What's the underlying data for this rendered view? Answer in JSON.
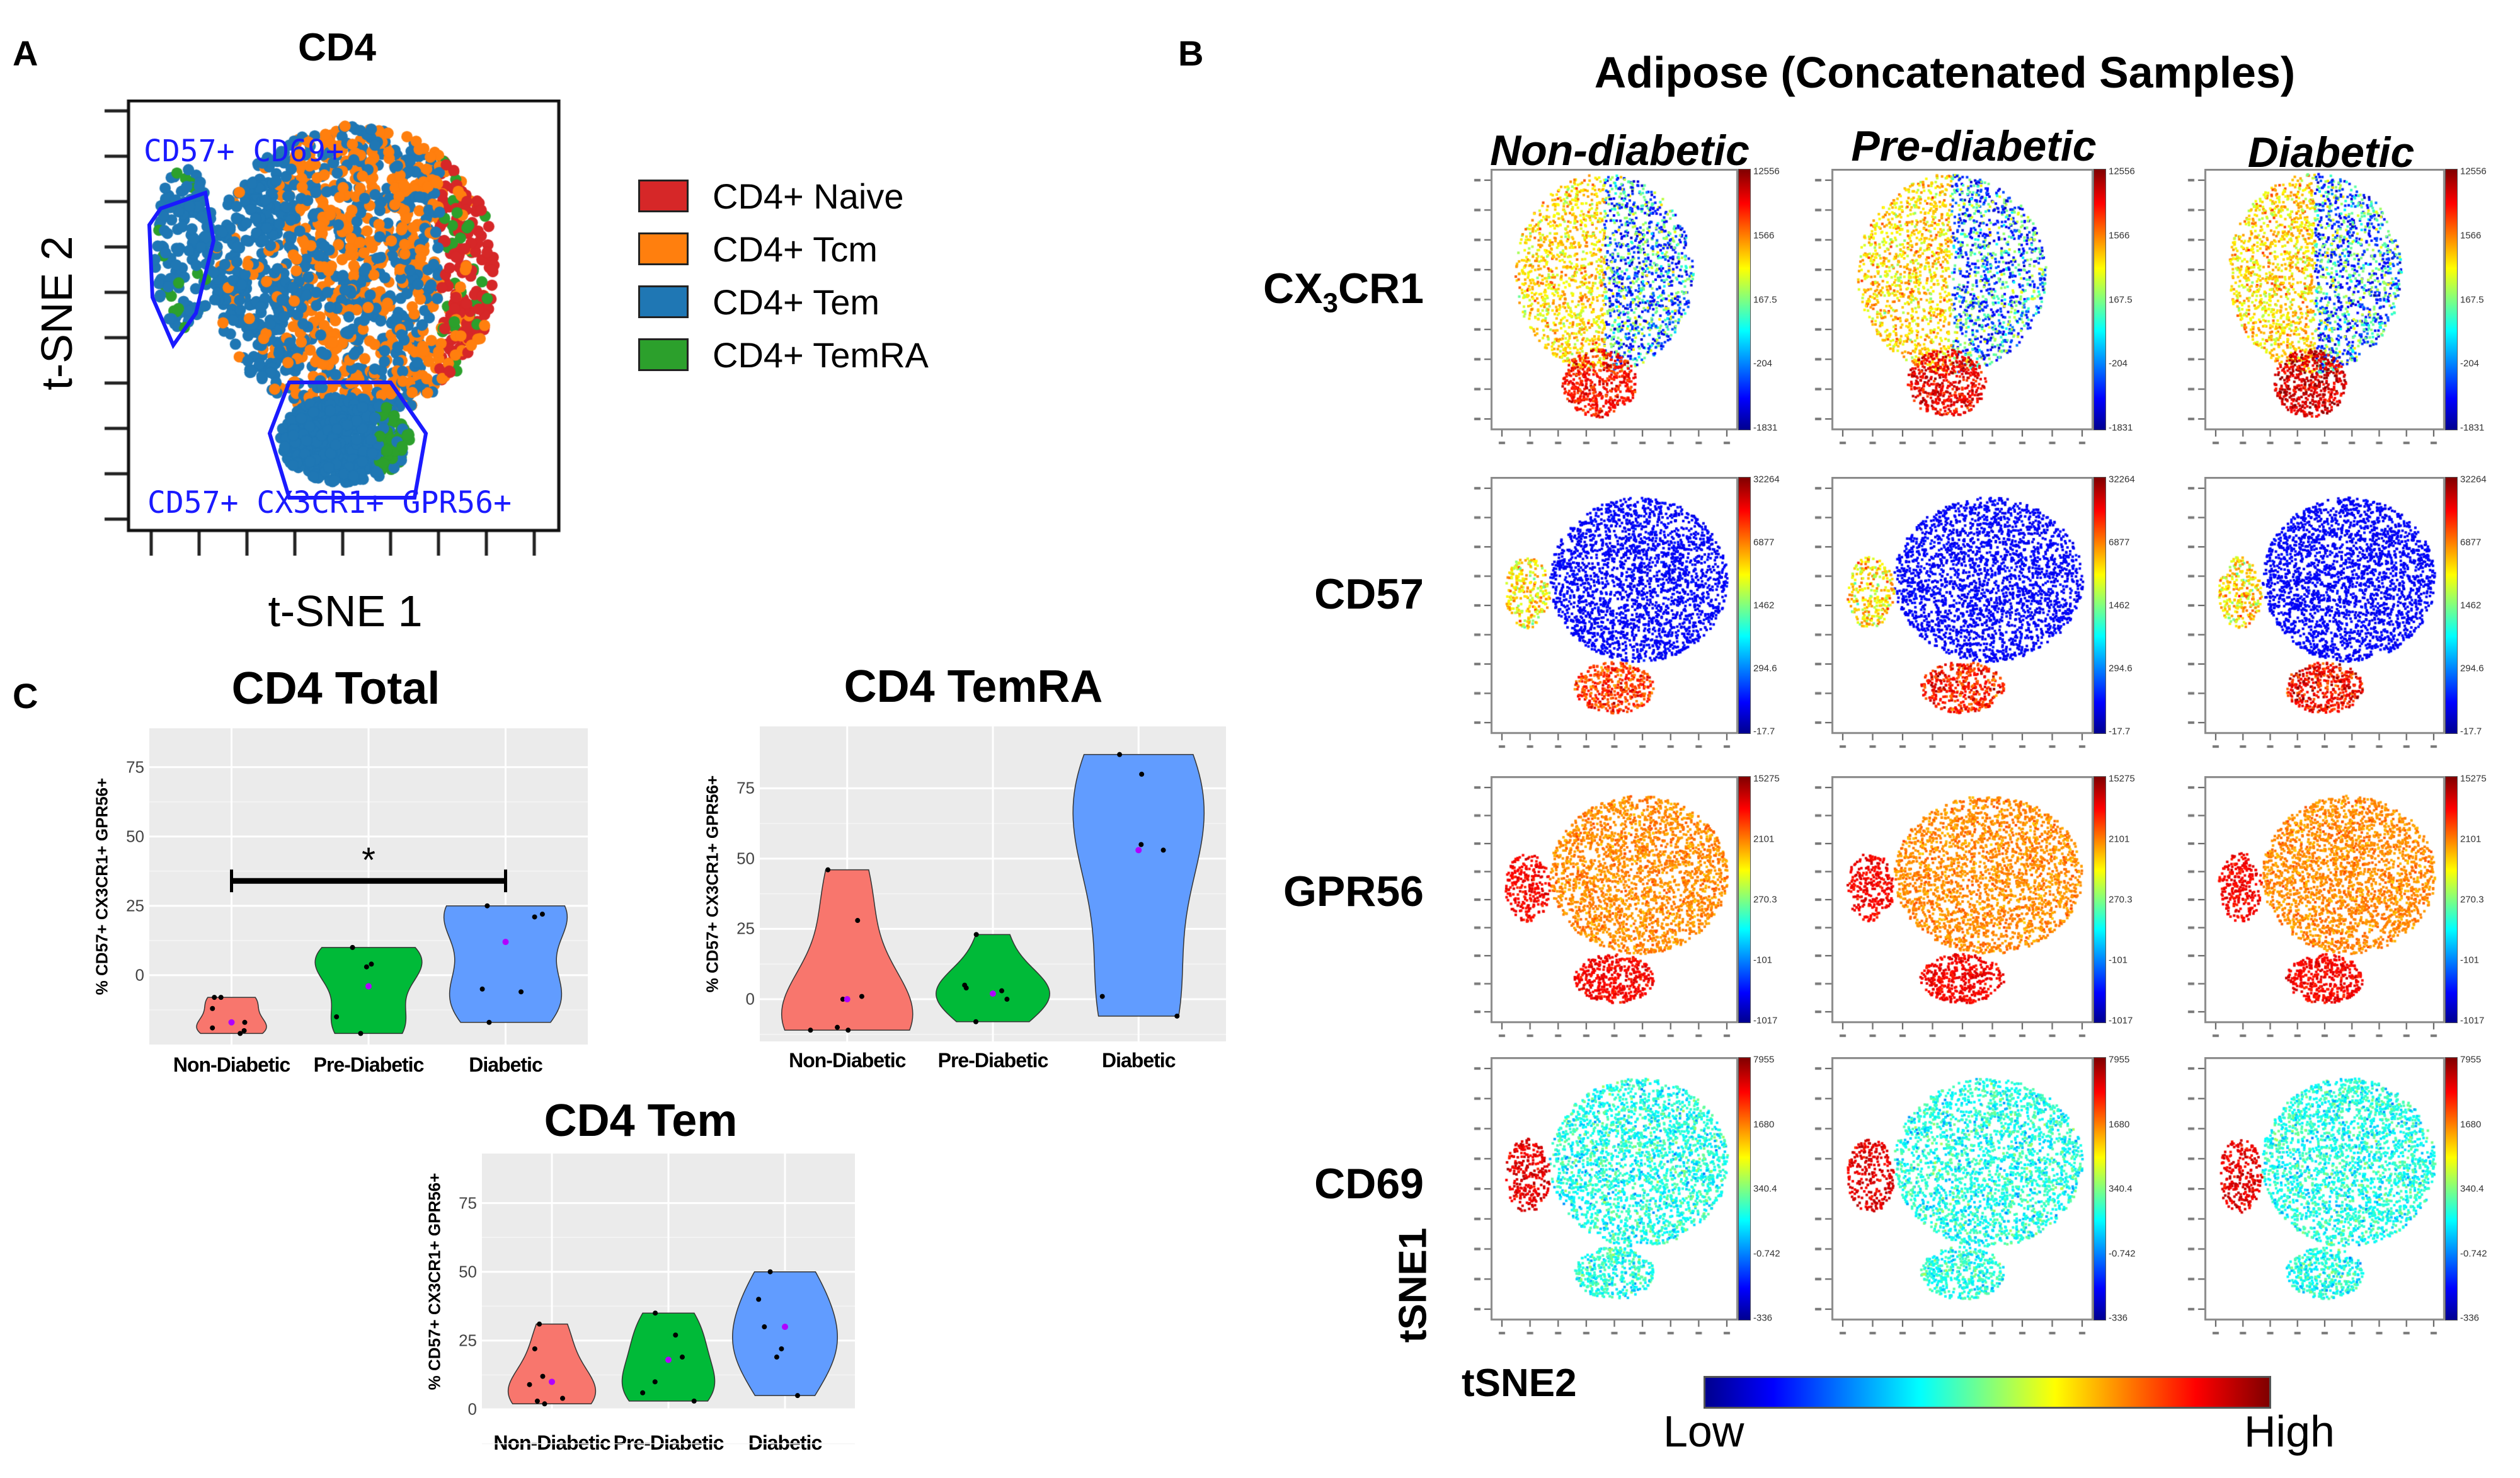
{
  "panel_a": {
    "letter": "A",
    "title": "CD4",
    "xlabel": "t-SNE 1",
    "ylabel": "t-SNE 2",
    "gates": [
      "CD57+ CD69+",
      "CD57+ CX3CR1+ GPR56+"
    ],
    "legend": [
      {
        "label": "CD4+ Naive",
        "color": "#d62728"
      },
      {
        "label": "CD4+ Tcm",
        "color": "#ff7f0e"
      },
      {
        "label": "CD4+ Tem",
        "color": "#1f77b4"
      },
      {
        "label": "CD4+ TemRA",
        "color": "#2ca02c"
      }
    ],
    "gate_color": "#1a1aff"
  },
  "panel_b": {
    "letter": "B",
    "title": "Adipose (Concatenated Samples)",
    "columns": [
      "Non-diabetic",
      "Pre-diabetic",
      "Diabetic"
    ],
    "rows": [
      {
        "marker": "CX3CR1",
        "parts": {
          "pre": "CX",
          "sub": "3",
          "post": "CR1"
        },
        "colorbar": [
          "12556",
          "1566",
          "167.5",
          "-204",
          "-1831"
        ]
      },
      {
        "marker": "CD57",
        "parts": {
          "pre": "CD57",
          "sub": "",
          "post": ""
        },
        "colorbar": [
          "32264",
          "6877",
          "1462",
          "294.6",
          "-17.7"
        ]
      },
      {
        "marker": "GPR56",
        "parts": {
          "pre": "GPR56",
          "sub": "",
          "post": ""
        },
        "colorbar": [
          "15275",
          "2101",
          "270.3",
          "-101",
          "-1017"
        ]
      },
      {
        "marker": "CD69",
        "parts": {
          "pre": "CD69",
          "sub": "",
          "post": ""
        },
        "colorbar": [
          "7955",
          "1680",
          "340.4",
          "-0.742",
          "-336"
        ]
      }
    ],
    "ylabel": "tSNE1",
    "xlabel": "tSNE2",
    "scale_low": "Low",
    "scale_high": "High",
    "colormap": "jet"
  },
  "panel_c": {
    "letter": "C"
  },
  "chart_data": [
    {
      "type": "violin",
      "title": "CD4 Total",
      "ylabel": "% CD57+ CX3CR1+ GPR56+",
      "categories": [
        "Non-Diabetic",
        "Pre-Diabetic",
        "Diabetic"
      ],
      "colors": [
        "#F8766D",
        "#00BA38",
        "#619CFF"
      ],
      "mean_color": "#b000ff",
      "yticks": [
        0,
        25,
        50,
        75
      ],
      "ylim": [
        -25,
        89
      ],
      "series": [
        {
          "category": "Non-Diabetic",
          "points": [
            -8,
            -8,
            -12,
            -17,
            -19,
            -20,
            -21
          ],
          "mean": -17
        },
        {
          "category": "Pre-Diabetic",
          "points": [
            10,
            4,
            3,
            -15,
            -21
          ],
          "mean": -4
        },
        {
          "category": "Diabetic",
          "points": [
            25,
            22,
            21,
            -5,
            -6,
            -17
          ],
          "mean": 12
        }
      ],
      "significance": {
        "from": "Non-Diabetic",
        "to": "Diabetic",
        "label": "*",
        "y": 34
      }
    },
    {
      "type": "violin",
      "title": "CD4 TemRA",
      "ylabel": "% CD57+ CX3CR1+ GPR56+",
      "categories": [
        "Non-Diabetic",
        "Pre-Diabetic",
        "Diabetic"
      ],
      "colors": [
        "#F8766D",
        "#00BA38",
        "#619CFF"
      ],
      "mean_color": "#b000ff",
      "yticks": [
        0,
        25,
        50,
        75
      ],
      "ylim": [
        -15,
        97
      ],
      "series": [
        {
          "category": "Non-Diabetic",
          "points": [
            46,
            28,
            1,
            0,
            -10,
            -11,
            -11
          ],
          "mean": 0
        },
        {
          "category": "Pre-Diabetic",
          "points": [
            23,
            5,
            4,
            3,
            0,
            -8
          ],
          "mean": 2
        },
        {
          "category": "Diabetic",
          "points": [
            87,
            80,
            55,
            53,
            1,
            -6
          ],
          "mean": 53
        }
      ]
    },
    {
      "type": "violin",
      "title": "CD4 Tem",
      "ylabel": "% CD57+ CX3CR1+ GPR56+",
      "categories": [
        "Non-Diabetic",
        "Pre-Diabetic",
        "Diabetic"
      ],
      "colors": [
        "#F8766D",
        "#00BA38",
        "#619CFF"
      ],
      "mean_color": "#b000ff",
      "yticks": [
        0,
        25,
        50,
        75
      ],
      "ylim": [
        0,
        93
      ],
      "series": [
        {
          "category": "Non-Diabetic",
          "points": [
            31,
            22,
            12,
            9,
            4,
            3,
            2
          ],
          "mean": 10
        },
        {
          "category": "Pre-Diabetic",
          "points": [
            35,
            27,
            19,
            10,
            6,
            3
          ],
          "mean": 18
        },
        {
          "category": "Diabetic",
          "points": [
            50,
            40,
            30,
            22,
            19,
            5
          ],
          "mean": 30
        }
      ]
    }
  ]
}
